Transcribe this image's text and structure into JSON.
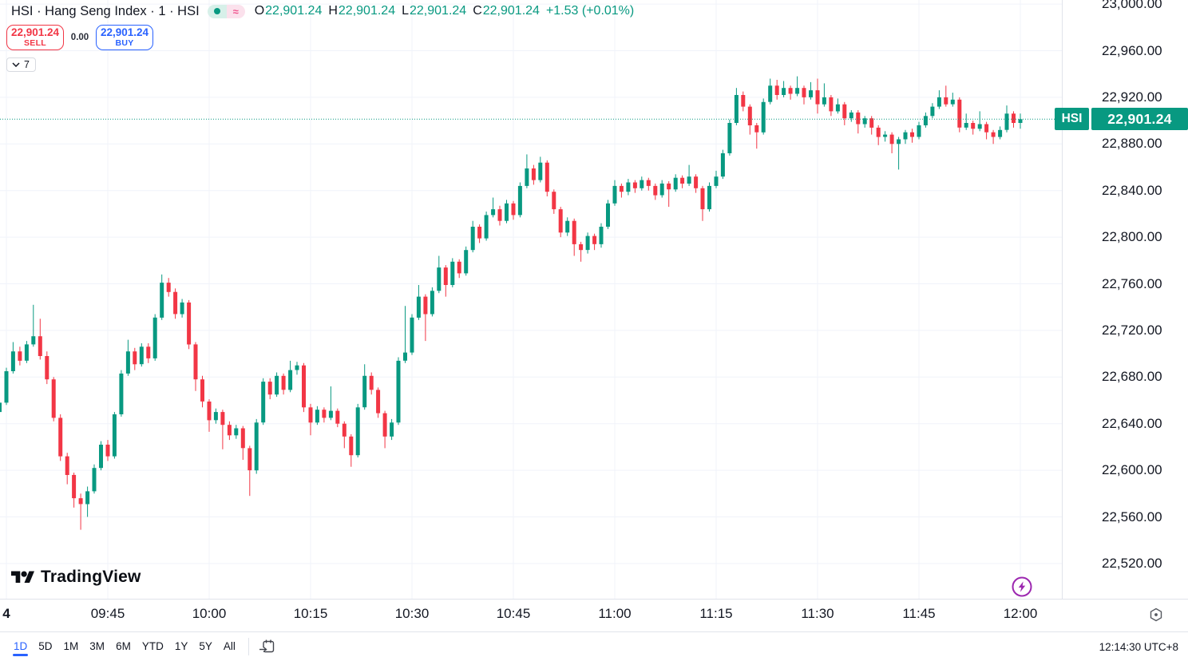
{
  "header": {
    "symbol_title": "HSI · Hang Seng Index · 1 · HSI",
    "status_approx": "≈",
    "ohlc": {
      "o_label": "O",
      "o_value": "22,901.24",
      "h_label": "H",
      "h_value": "22,901.24",
      "l_label": "L",
      "l_value": "22,901.24",
      "c_label": "C",
      "c_value": "22,901.24",
      "change": "+1.53 (+0.01%)"
    },
    "sell_button": {
      "price": "22,901.24",
      "label": "SELL"
    },
    "spread": "0.00",
    "buy_button": {
      "price": "22,901.24",
      "label": "BUY"
    },
    "collapse_count": "7"
  },
  "watermark": "TradingView",
  "price_axis": {
    "levels": [
      {
        "price": 23000,
        "label": "23,000.00"
      },
      {
        "price": 22960,
        "label": "22,960.00"
      },
      {
        "price": 22920,
        "label": "22,920.00"
      },
      {
        "price": 22880,
        "label": "22,880.00"
      },
      {
        "price": 22840,
        "label": "22,840.00"
      },
      {
        "price": 22800,
        "label": "22,800.00"
      },
      {
        "price": 22760,
        "label": "22,760.00"
      },
      {
        "price": 22720,
        "label": "22,720.00"
      },
      {
        "price": 22680,
        "label": "22,680.00"
      },
      {
        "price": 22640,
        "label": "22,640.00"
      },
      {
        "price": 22600,
        "label": "22,600.00"
      },
      {
        "price": 22560,
        "label": "22,560.00"
      },
      {
        "price": 22520,
        "label": "22,520.00"
      }
    ],
    "current": {
      "symbol": "HSI",
      "price": "22,901.24"
    }
  },
  "time_axis": {
    "labels": [
      {
        "idx": 1,
        "text": "4",
        "bold": true
      },
      {
        "idx": 16,
        "text": "09:45"
      },
      {
        "idx": 31,
        "text": "10:00"
      },
      {
        "idx": 46,
        "text": "10:15"
      },
      {
        "idx": 61,
        "text": "10:30"
      },
      {
        "idx": 76,
        "text": "10:45"
      },
      {
        "idx": 91,
        "text": "11:00"
      },
      {
        "idx": 106,
        "text": "11:15"
      },
      {
        "idx": 121,
        "text": "11:30"
      },
      {
        "idx": 136,
        "text": "11:45"
      },
      {
        "idx": 151,
        "text": "12:00"
      }
    ]
  },
  "toolbar": {
    "ranges": [
      "1D",
      "5D",
      "1M",
      "3M",
      "6M",
      "YTD",
      "1Y",
      "5Y",
      "All"
    ],
    "active_range": "1D",
    "clock": "12:14:30 UTC+8"
  },
  "colors": {
    "up": "#089981",
    "down": "#f23645",
    "accent_blue": "#2962ff",
    "text": "#131722",
    "muted": "#787b86",
    "grid": "#f0f3fa",
    "axis_border": "#e0e3eb",
    "purple": "#9c27b0"
  },
  "chart_data": {
    "type": "candlestick",
    "symbol": "HSI",
    "interval": "1",
    "start_time": "09:29",
    "interval_minutes": 1,
    "current_price": 22901.24,
    "ylim": [
      22520,
      23000
    ],
    "grid": true,
    "candles": [
      [
        22650,
        22662,
        22646,
        22658
      ],
      [
        22658,
        22688,
        22656,
        22685
      ],
      [
        22685,
        22710,
        22683,
        22702
      ],
      [
        22702,
        22706,
        22690,
        22694
      ],
      [
        22694,
        22711,
        22692,
        22708
      ],
      [
        22708,
        22742,
        22706,
        22715
      ],
      [
        22715,
        22730,
        22695,
        22698
      ],
      [
        22698,
        22702,
        22674,
        22678
      ],
      [
        22678,
        22680,
        22642,
        22645
      ],
      [
        22645,
        22648,
        22608,
        22612
      ],
      [
        22612,
        22615,
        22588,
        22596
      ],
      [
        22596,
        22598,
        22568,
        22576
      ],
      [
        22576,
        22580,
        22549,
        22571
      ],
      [
        22571,
        22586,
        22560,
        22582
      ],
      [
        22582,
        22605,
        22580,
        22602
      ],
      [
        22602,
        22625,
        22600,
        22622
      ],
      [
        22622,
        22626,
        22608,
        22612
      ],
      [
        22612,
        22650,
        22610,
        22648
      ],
      [
        22648,
        22686,
        22646,
        22683
      ],
      [
        22683,
        22712,
        22681,
        22702
      ],
      [
        22702,
        22705,
        22686,
        22691
      ],
      [
        22691,
        22709,
        22689,
        22706
      ],
      [
        22706,
        22709,
        22692,
        22696
      ],
      [
        22696,
        22734,
        22694,
        22731
      ],
      [
        22731,
        22768,
        22729,
        22761
      ],
      [
        22761,
        22765,
        22749,
        22753
      ],
      [
        22753,
        22756,
        22730,
        22734
      ],
      [
        22734,
        22747,
        22731,
        22744
      ],
      [
        22744,
        22746,
        22704,
        22708
      ],
      [
        22708,
        22710,
        22668,
        22678
      ],
      [
        22678,
        22681,
        22654,
        22659
      ],
      [
        22659,
        22661,
        22633,
        22643
      ],
      [
        22643,
        22653,
        22640,
        22650
      ],
      [
        22650,
        22652,
        22618,
        22639
      ],
      [
        22639,
        22642,
        22626,
        22630
      ],
      [
        22630,
        22639,
        22627,
        22636
      ],
      [
        22636,
        22638,
        22609,
        22619
      ],
      [
        22619,
        22621,
        22578,
        22600
      ],
      [
        22600,
        22644,
        22597,
        22641
      ],
      [
        22641,
        22679,
        22639,
        22676
      ],
      [
        22676,
        22679,
        22661,
        22665
      ],
      [
        22665,
        22684,
        22663,
        22681
      ],
      [
        22681,
        22683,
        22665,
        22669
      ],
      [
        22669,
        22694,
        22667,
        22686
      ],
      [
        22686,
        22693,
        22682,
        22690
      ],
      [
        22690,
        22692,
        22650,
        22654
      ],
      [
        22654,
        22657,
        22630,
        22641
      ],
      [
        22641,
        22655,
        22639,
        22652
      ],
      [
        22652,
        22654,
        22641,
        22645
      ],
      [
        22645,
        22672,
        22643,
        22651
      ],
      [
        22651,
        22653,
        22637,
        22640
      ],
      [
        22640,
        22642,
        22619,
        22629
      ],
      [
        22629,
        22631,
        22603,
        22613
      ],
      [
        22613,
        22657,
        22611,
        22654
      ],
      [
        22654,
        22691,
        22652,
        22681
      ],
      [
        22681,
        22684,
        22665,
        22669
      ],
      [
        22669,
        22671,
        22645,
        22649
      ],
      [
        22649,
        22651,
        22619,
        22629
      ],
      [
        22629,
        22644,
        22626,
        22641
      ],
      [
        22641,
        22697,
        22639,
        22694
      ],
      [
        22694,
        22741,
        22692,
        22701
      ],
      [
        22701,
        22734,
        22699,
        22731
      ],
      [
        22731,
        22759,
        22729,
        22749
      ],
      [
        22749,
        22751,
        22711,
        22734
      ],
      [
        22734,
        22757,
        22732,
        22754
      ],
      [
        22754,
        22784,
        22752,
        22774
      ],
      [
        22774,
        22776,
        22749,
        22759
      ],
      [
        22759,
        22782,
        22757,
        22779
      ],
      [
        22779,
        22781,
        22765,
        22769
      ],
      [
        22769,
        22792,
        22767,
        22789
      ],
      [
        22789,
        22814,
        22787,
        22809
      ],
      [
        22809,
        22811,
        22795,
        22799
      ],
      [
        22799,
        22822,
        22797,
        22819
      ],
      [
        22819,
        22834,
        22817,
        22824
      ],
      [
        22824,
        22827,
        22810,
        22814
      ],
      [
        22814,
        22832,
        22812,
        22829
      ],
      [
        22829,
        22831,
        22815,
        22819
      ],
      [
        22819,
        22847,
        22817,
        22844
      ],
      [
        22844,
        22871,
        22842,
        22859
      ],
      [
        22859,
        22862,
        22845,
        22849
      ],
      [
        22849,
        22869,
        22847,
        22864
      ],
      [
        22864,
        22866,
        22835,
        22839
      ],
      [
        22839,
        22841,
        22820,
        22824
      ],
      [
        22824,
        22826,
        22800,
        22804
      ],
      [
        22804,
        22817,
        22801,
        22814
      ],
      [
        22814,
        22816,
        22784,
        22794
      ],
      [
        22794,
        22796,
        22779,
        22789
      ],
      [
        22789,
        22804,
        22786,
        22801
      ],
      [
        22801,
        22803,
        22789,
        22794
      ],
      [
        22794,
        22812,
        22791,
        22809
      ],
      [
        22809,
        22832,
        22807,
        22829
      ],
      [
        22829,
        22849,
        22827,
        22844
      ],
      [
        22844,
        22846,
        22834,
        22839
      ],
      [
        22839,
        22850,
        22836,
        22847
      ],
      [
        22847,
        22849,
        22838,
        22842
      ],
      [
        22842,
        22852,
        22840,
        22849
      ],
      [
        22849,
        22851,
        22840,
        22844
      ],
      [
        22844,
        22846,
        22832,
        22836
      ],
      [
        22836,
        22849,
        22834,
        22846
      ],
      [
        22846,
        22848,
        22826,
        22841
      ],
      [
        22841,
        22854,
        22839,
        22851
      ],
      [
        22851,
        22853,
        22842,
        22846
      ],
      [
        22846,
        22862,
        22844,
        22852
      ],
      [
        22852,
        22854,
        22838,
        22842
      ],
      [
        22842,
        22844,
        22814,
        22824
      ],
      [
        22824,
        22847,
        22822,
        22844
      ],
      [
        22844,
        22857,
        22842,
        22852
      ],
      [
        22852,
        22875,
        22850,
        22872
      ],
      [
        22872,
        22901,
        22870,
        22898
      ],
      [
        22898,
        22928,
        22896,
        22922
      ],
      [
        22922,
        22925,
        22908,
        22912
      ],
      [
        22912,
        22914,
        22888,
        22896
      ],
      [
        22896,
        22898,
        22876,
        22890
      ],
      [
        22890,
        22919,
        22888,
        22916
      ],
      [
        22916,
        22936,
        22914,
        22930
      ],
      [
        22930,
        22935,
        22918,
        22922
      ],
      [
        22922,
        22934,
        22920,
        22928
      ],
      [
        22928,
        22930,
        22918,
        22923
      ],
      [
        22923,
        22938,
        22921,
        22928
      ],
      [
        22928,
        22930,
        22914,
        22920
      ],
      [
        22920,
        22933,
        22918,
        22926
      ],
      [
        22926,
        22936,
        22906,
        22914
      ],
      [
        22914,
        22932,
        22912,
        22920
      ],
      [
        22920,
        22922,
        22904,
        22908
      ],
      [
        22908,
        22919,
        22906,
        22914
      ],
      [
        22914,
        22916,
        22896,
        22902
      ],
      [
        22902,
        22909,
        22899,
        22907
      ],
      [
        22907,
        22909,
        22889,
        22897
      ],
      [
        22897,
        22904,
        22894,
        22902
      ],
      [
        22902,
        22904,
        22888,
        22894
      ],
      [
        22894,
        22896,
        22879,
        22886
      ],
      [
        22886,
        22891,
        22882,
        22888
      ],
      [
        22888,
        22890,
        22872,
        22880
      ],
      [
        22880,
        22886,
        22858,
        22884
      ],
      [
        22884,
        22892,
        22880,
        22890
      ],
      [
        22890,
        22893,
        22881,
        22886
      ],
      [
        22886,
        22899,
        22884,
        22896
      ],
      [
        22896,
        22907,
        22894,
        22904
      ],
      [
        22904,
        22915,
        22902,
        22912
      ],
      [
        22912,
        22926,
        22910,
        22920
      ],
      [
        22920,
        22930,
        22912,
        22914
      ],
      [
        22914,
        22924,
        22912,
        22918
      ],
      [
        22918,
        22920,
        22890,
        22894
      ],
      [
        22894,
        22906,
        22892,
        22898
      ],
      [
        22898,
        22900,
        22888,
        22893
      ],
      [
        22893,
        22908,
        22891,
        22897
      ],
      [
        22897,
        22899,
        22884,
        22890
      ],
      [
        22890,
        22892,
        22880,
        22886
      ],
      [
        22886,
        22895,
        22884,
        22892
      ],
      [
        22892,
        22913,
        22890,
        22906
      ],
      [
        22906,
        22908,
        22894,
        22898
      ],
      [
        22898,
        22906,
        22893,
        22901.24
      ]
    ]
  }
}
